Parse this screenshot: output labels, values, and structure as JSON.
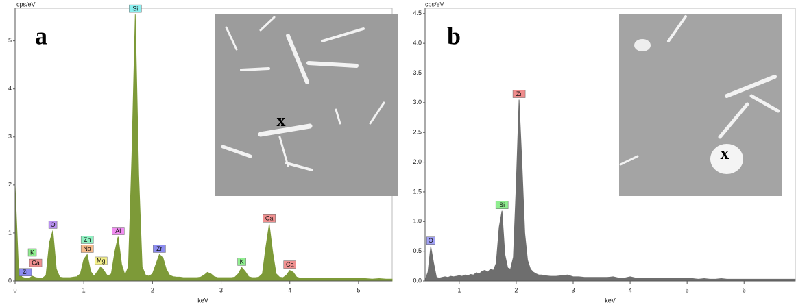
{
  "chart_data": [
    {
      "type": "area",
      "panel_label": "a",
      "y_label": "cps/eV",
      "x_label": "keV",
      "inset_label": "x",
      "color": "#7d9a38",
      "xlim": [
        0,
        5.49
      ],
      "ylim": [
        0,
        5.68
      ],
      "xticks": [
        0,
        1,
        2,
        3,
        4,
        5
      ],
      "yticks": [
        0,
        1,
        2,
        3,
        4,
        5
      ],
      "x": [
        0,
        0.05,
        0.1,
        0.15,
        0.2,
        0.25,
        0.3,
        0.35,
        0.4,
        0.45,
        0.5,
        0.55,
        0.6,
        0.65,
        0.7,
        0.75,
        0.8,
        0.85,
        0.9,
        0.95,
        1,
        1.05,
        1.1,
        1.15,
        1.2,
        1.25,
        1.3,
        1.35,
        1.4,
        1.45,
        1.5,
        1.55,
        1.6,
        1.65,
        1.7,
        1.75,
        1.8,
        1.85,
        1.9,
        1.95,
        2,
        2.05,
        2.1,
        2.15,
        2.2,
        2.25,
        2.3,
        2.35,
        2.4,
        2.45,
        2.5,
        2.55,
        2.6,
        2.65,
        2.7,
        2.75,
        2.8,
        2.85,
        2.9,
        2.95,
        3,
        3.05,
        3.1,
        3.15,
        3.2,
        3.25,
        3.3,
        3.35,
        3.4,
        3.45,
        3.5,
        3.55,
        3.6,
        3.65,
        3.7,
        3.75,
        3.8,
        3.85,
        3.9,
        3.95,
        4,
        4.05,
        4.1,
        4.15,
        4.2,
        4.3,
        4.4,
        4.5,
        4.6,
        4.7,
        4.8,
        4.9,
        5,
        5.1,
        5.2,
        5.3,
        5.4,
        5.49
      ],
      "values": [
        2.0,
        0.25,
        0.08,
        0.06,
        0.05,
        0.1,
        0.07,
        0.06,
        0.06,
        0.12,
        0.8,
        1.05,
        0.25,
        0.08,
        0.07,
        0.07,
        0.07,
        0.08,
        0.09,
        0.15,
        0.45,
        0.55,
        0.2,
        0.1,
        0.2,
        0.3,
        0.2,
        0.1,
        0.15,
        0.6,
        0.92,
        0.35,
        0.12,
        0.3,
        2.6,
        5.55,
        2.2,
        0.3,
        0.12,
        0.1,
        0.15,
        0.35,
        0.55,
        0.5,
        0.25,
        0.12,
        0.09,
        0.08,
        0.08,
        0.07,
        0.07,
        0.07,
        0.07,
        0.07,
        0.08,
        0.12,
        0.18,
        0.15,
        0.09,
        0.07,
        0.07,
        0.07,
        0.07,
        0.07,
        0.08,
        0.15,
        0.28,
        0.2,
        0.09,
        0.07,
        0.07,
        0.08,
        0.15,
        0.7,
        1.18,
        0.6,
        0.15,
        0.08,
        0.07,
        0.12,
        0.22,
        0.18,
        0.08,
        0.06,
        0.06,
        0.06,
        0.06,
        0.05,
        0.06,
        0.05,
        0.05,
        0.05,
        0.05,
        0.05,
        0.04,
        0.05,
        0.04,
        0.04
      ],
      "peaks": [
        {
          "label": "Zr",
          "x": 0.15,
          "y": 0.06,
          "color": "#8c8cf0"
        },
        {
          "label": "Ca",
          "x": 0.3,
          "y": 0.07,
          "color": "#f09090"
        },
        {
          "label": "K",
          "x": 0.25,
          "y": 0.1,
          "color": "#90ee90"
        },
        {
          "label": "O",
          "x": 0.55,
          "y": 1.05,
          "color": "#b890f0"
        },
        {
          "label": "Na",
          "x": 1.05,
          "y": 0.55,
          "color": "#f4b98a"
        },
        {
          "label": "Zn",
          "x": 1.05,
          "y": 0.55,
          "color": "#8ef0c0"
        },
        {
          "label": "Mg",
          "x": 1.25,
          "y": 0.3,
          "color": "#f4f08a"
        },
        {
          "label": "Al",
          "x": 1.5,
          "y": 0.92,
          "color": "#f08cf0"
        },
        {
          "label": "Si",
          "x": 1.75,
          "y": 5.55,
          "color": "#8cf0f0"
        },
        {
          "label": "Zr",
          "x": 2.1,
          "y": 0.55,
          "color": "#8c8cf0"
        },
        {
          "label": "K",
          "x": 3.3,
          "y": 0.28,
          "color": "#90ee90"
        },
        {
          "label": "Ca",
          "x": 3.7,
          "y": 1.18,
          "color": "#f09090"
        },
        {
          "label": "Ca",
          "x": 4.0,
          "y": 0.22,
          "color": "#f09090"
        }
      ]
    },
    {
      "type": "area",
      "panel_label": "b",
      "y_label": "cps/eV",
      "x_label": "keV",
      "inset_label": "x",
      "color": "#6e6e6e",
      "xlim": [
        0.4,
        6.9
      ],
      "ylim": [
        0,
        4.59
      ],
      "xticks": [
        1,
        2,
        3,
        4,
        5,
        6
      ],
      "yticks": [
        {
          "value": 0,
          "label": "0.0"
        },
        0.5,
        {
          "value": 1,
          "label": "1.0"
        },
        1.5,
        {
          "value": 2,
          "label": "2.0"
        },
        2.5,
        {
          "value": 3,
          "label": "3.0"
        },
        3.5,
        {
          "value": 4,
          "label": "4.0"
        },
        4.5
      ],
      "x": [
        0.4,
        0.45,
        0.5,
        0.55,
        0.6,
        0.65,
        0.7,
        0.75,
        0.8,
        0.85,
        0.9,
        0.95,
        1,
        1.05,
        1.1,
        1.15,
        1.2,
        1.25,
        1.3,
        1.35,
        1.4,
        1.45,
        1.5,
        1.55,
        1.6,
        1.65,
        1.7,
        1.75,
        1.8,
        1.85,
        1.9,
        1.95,
        2,
        2.05,
        2.1,
        2.15,
        2.2,
        2.25,
        2.3,
        2.35,
        2.4,
        2.45,
        2.5,
        2.6,
        2.7,
        2.8,
        2.9,
        3,
        3.1,
        3.2,
        3.3,
        3.4,
        3.5,
        3.6,
        3.7,
        3.8,
        3.9,
        4,
        4.1,
        4.2,
        4.3,
        4.4,
        4.5,
        4.6,
        4.7,
        4.8,
        4.9,
        5,
        5.1,
        5.2,
        5.3,
        5.4,
        5.5,
        5.6,
        5.7,
        5.8,
        5.9,
        6,
        6.1,
        6.2,
        6.3,
        6.4,
        6.5,
        6.6,
        6.7,
        6.8,
        6.9
      ],
      "values": [
        0.02,
        0.15,
        0.58,
        0.3,
        0.06,
        0.05,
        0.06,
        0.07,
        0.06,
        0.08,
        0.07,
        0.08,
        0.09,
        0.08,
        0.1,
        0.09,
        0.11,
        0.1,
        0.14,
        0.12,
        0.16,
        0.18,
        0.15,
        0.2,
        0.18,
        0.3,
        0.9,
        1.18,
        0.45,
        0.22,
        0.2,
        0.4,
        1.6,
        3.05,
        2.0,
        0.8,
        0.35,
        0.2,
        0.15,
        0.12,
        0.1,
        0.1,
        0.09,
        0.08,
        0.08,
        0.09,
        0.1,
        0.07,
        0.07,
        0.06,
        0.06,
        0.06,
        0.06,
        0.06,
        0.07,
        0.05,
        0.05,
        0.07,
        0.05,
        0.05,
        0.05,
        0.04,
        0.05,
        0.04,
        0.04,
        0.04,
        0.04,
        0.04,
        0.04,
        0.03,
        0.04,
        0.03,
        0.03,
        0.04,
        0.03,
        0.03,
        0.03,
        0.03,
        0.03,
        0.03,
        0.03,
        0.03,
        0.03,
        0.03,
        0.03,
        0.03,
        0.03
      ],
      "peaks": [
        {
          "label": "O",
          "x": 0.5,
          "y": 0.58,
          "color": "#a0a0f4"
        },
        {
          "label": "Si",
          "x": 1.75,
          "y": 1.18,
          "color": "#90ee90"
        },
        {
          "label": "Zr",
          "x": 2.05,
          "y": 3.05,
          "color": "#f08c8c"
        }
      ]
    }
  ]
}
